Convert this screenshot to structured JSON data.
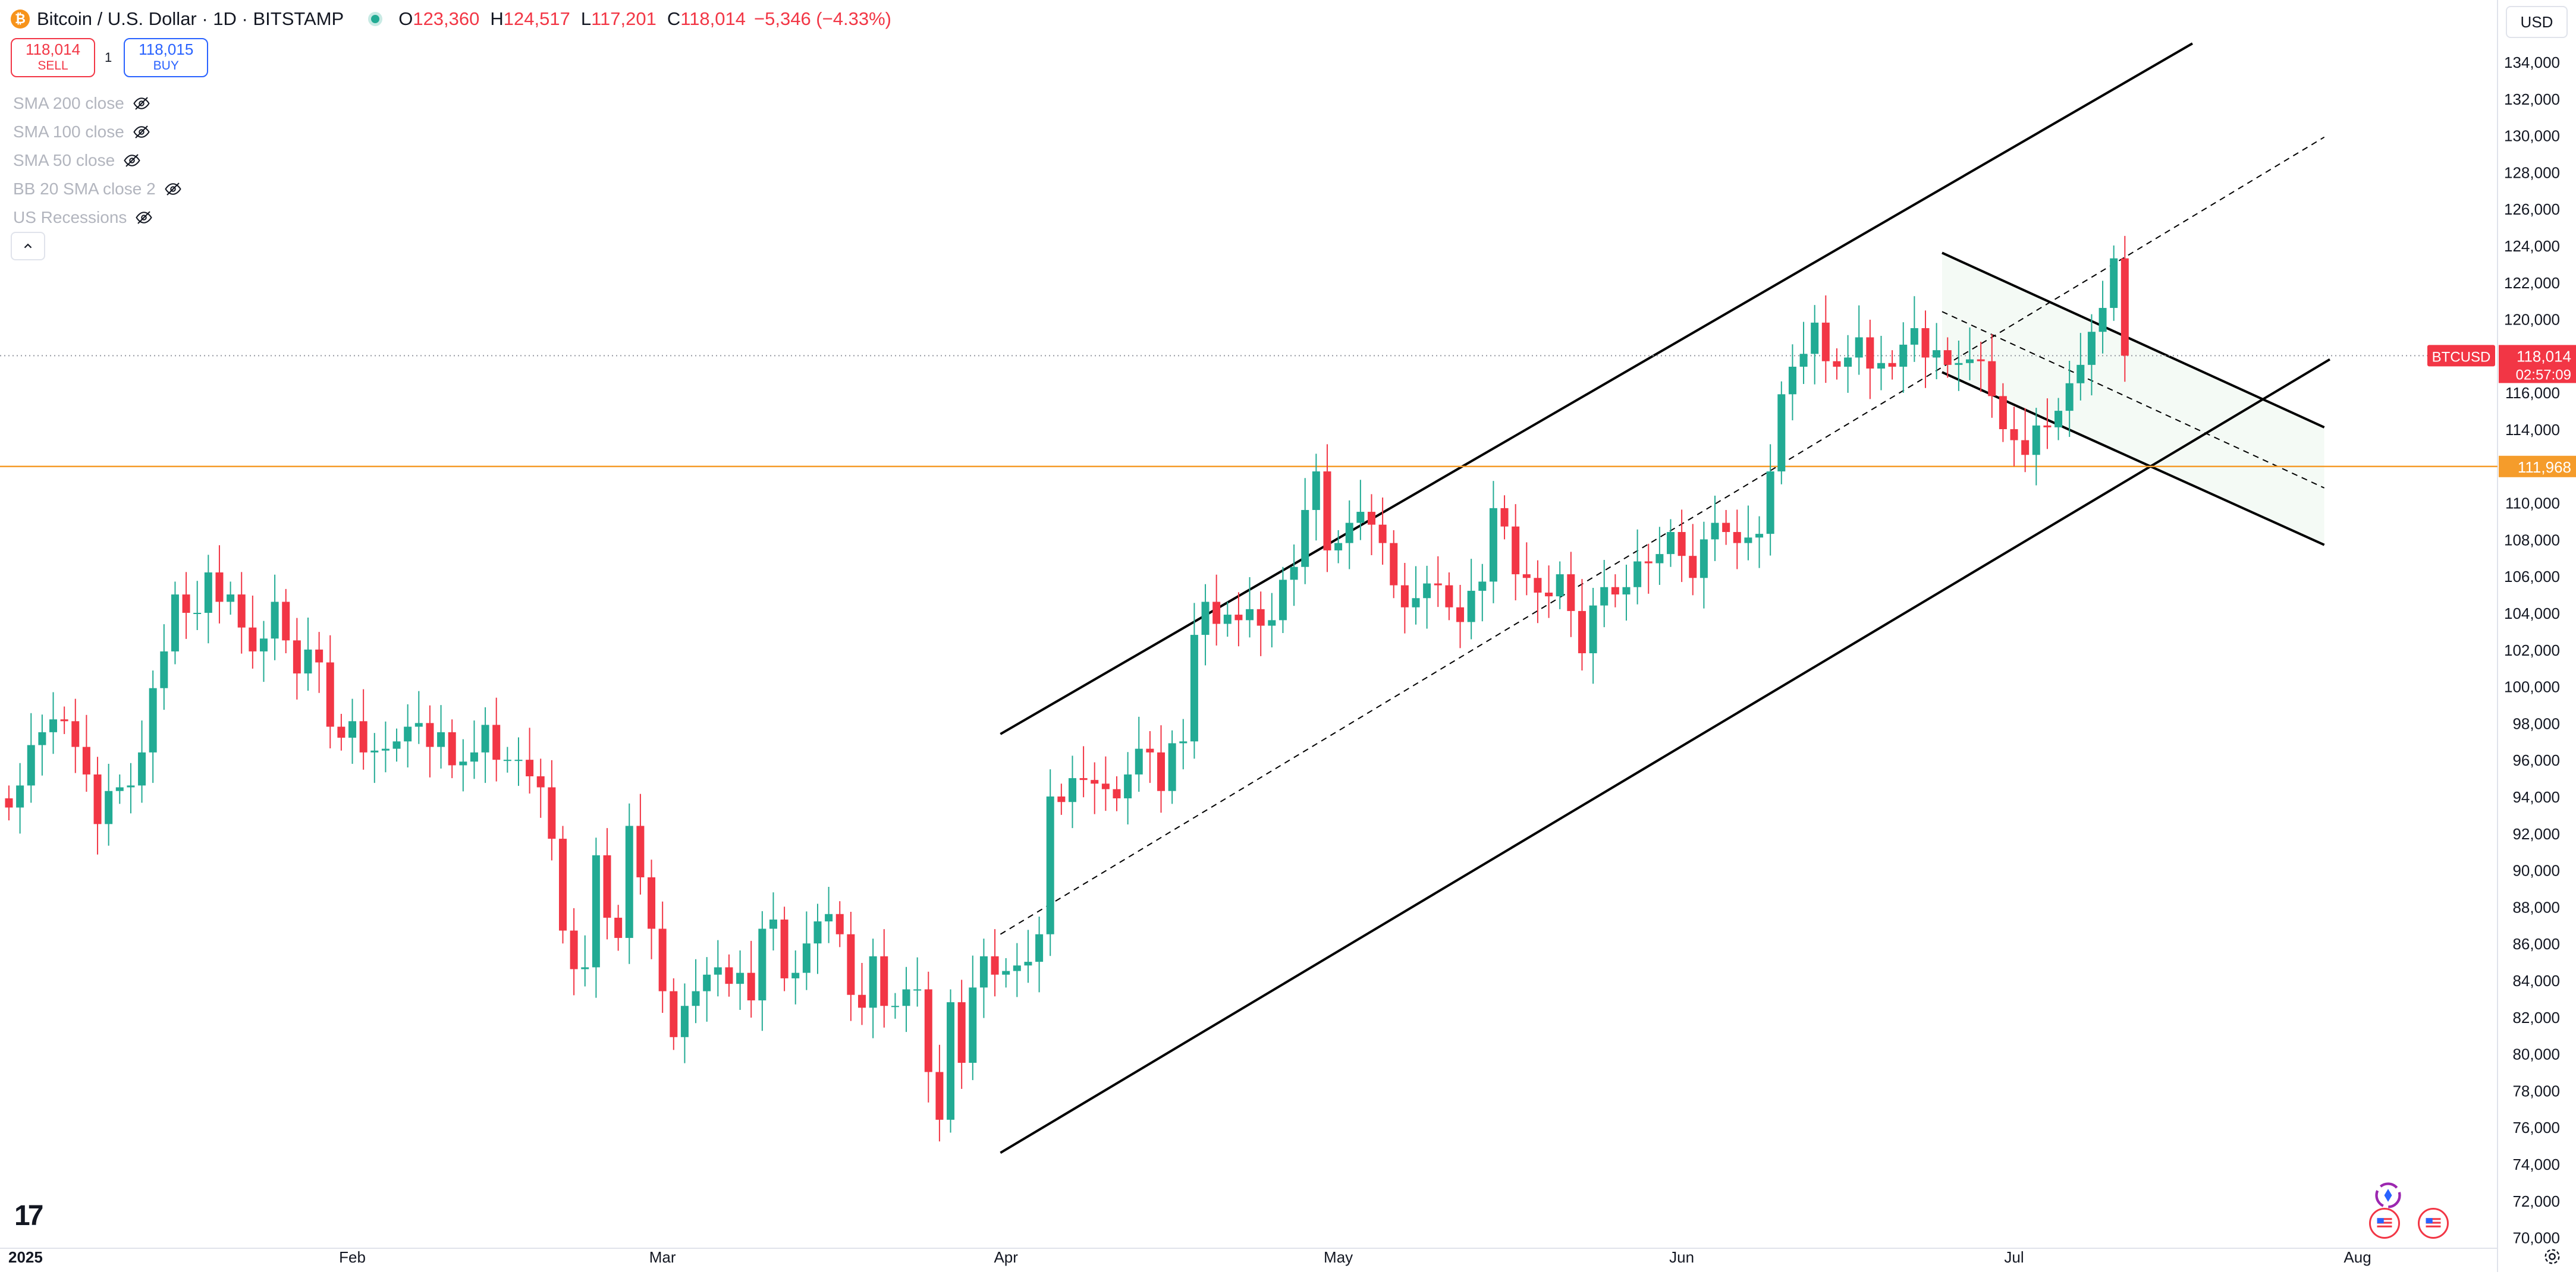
{
  "header": {
    "coin_glyph": "₿",
    "symbol_title": "Bitcoin / U.S. Dollar · 1D · BITSTAMP",
    "ohlc": [
      {
        "label": "O",
        "value": "123,360"
      },
      {
        "label": "H",
        "value": "124,517"
      },
      {
        "label": "L",
        "value": "117,201"
      },
      {
        "label": "C",
        "value": "118,014"
      }
    ],
    "change": "−5,346 (−4.33%)"
  },
  "trade": {
    "sell_price": "118,014",
    "sell_label": "SELL",
    "spread": "1",
    "buy_price": "118,015",
    "buy_label": "BUY"
  },
  "indicators": [
    {
      "label": "SMA 200 close"
    },
    {
      "label": "SMA 100 close"
    },
    {
      "label": "SMA 50 close"
    },
    {
      "label": "BB 20 SMA close 2"
    },
    {
      "label": "US Recessions"
    }
  ],
  "currency_selector": "USD",
  "logo": "17",
  "colors": {
    "up": "#22ab94",
    "down": "#f23645",
    "orange": "#f59c2b",
    "blue": "#2962ff"
  },
  "chart_data": {
    "type": "candlestick",
    "title": "Bitcoin / U.S. Dollar · 1D · BITSTAMP",
    "ylim": [
      70000,
      135000
    ],
    "y_ticks": [
      70000,
      72000,
      74000,
      76000,
      78000,
      80000,
      82000,
      84000,
      86000,
      88000,
      90000,
      92000,
      94000,
      96000,
      98000,
      100000,
      102000,
      104000,
      106000,
      108000,
      110000,
      112000,
      114000,
      116000,
      118000,
      120000,
      122000,
      124000,
      126000,
      128000,
      130000,
      132000,
      134000
    ],
    "x_ticks": [
      {
        "label": "2025",
        "day": 0
      },
      {
        "label": "Feb",
        "day": 31
      },
      {
        "label": "Mar",
        "day": 59
      },
      {
        "label": "Apr",
        "day": 90
      },
      {
        "label": "May",
        "day": 120
      },
      {
        "label": "Jun",
        "day": 151
      },
      {
        "label": "Jul",
        "day": 181
      },
      {
        "label": "Aug",
        "day": 212
      }
    ],
    "closes": [
      93400,
      94600,
      96800,
      97500,
      98200,
      98100,
      96700,
      95200,
      92500,
      94300,
      94500,
      94600,
      96400,
      99900,
      101900,
      105000,
      104000,
      104000,
      106200,
      104600,
      105000,
      103200,
      101900,
      102600,
      104600,
      102500,
      100700,
      102000,
      101300,
      97800,
      97200,
      98100,
      96400,
      96500,
      96600,
      97000,
      97800,
      98000,
      96700,
      97500,
      95700,
      95900,
      96400,
      97900,
      96000,
      96000,
      96000,
      95100,
      94500,
      91700,
      86700,
      84600,
      84700,
      90800,
      87400,
      86300,
      92400,
      89600,
      86800,
      83400,
      80900,
      82600,
      83400,
      84300,
      84700,
      83800,
      84400,
      82900,
      86800,
      87300,
      84100,
      84400,
      86000,
      87200,
      87600,
      86500,
      83200,
      82500,
      85300,
      82600,
      82600,
      83500,
      83500,
      79000,
      76400,
      82800,
      79500,
      83600,
      85300,
      84300,
      84500,
      84800,
      85000,
      86500,
      94000,
      93700,
      95000,
      94900,
      94700,
      94400,
      93900,
      95200,
      96600,
      96400,
      94300,
      96900,
      97000,
      102800,
      104600,
      103400,
      103900,
      103600,
      104200,
      103300,
      103600,
      105800,
      106500,
      109600,
      111700,
      107400,
      107800,
      108900,
      109500,
      108800,
      107800,
      105500,
      104300,
      104800,
      105600,
      105500,
      104300,
      103500,
      105200,
      105700,
      109700,
      108700,
      106100,
      105900,
      105100,
      104900,
      106100,
      104100,
      101800,
      104400,
      105400,
      105000,
      105400,
      106800,
      106700,
      107200,
      108400,
      107100,
      105900,
      108000,
      108900,
      108400,
      107800,
      108100,
      108300,
      111700,
      115900,
      117400,
      118100,
      119800,
      117700,
      117400,
      117900,
      119000,
      117300,
      117600,
      117400,
      118600,
      119500,
      117900,
      118300,
      117500,
      117600,
      117800,
      117700,
      115800,
      114000,
      113400,
      112600,
      114200,
      114100,
      115000,
      116500,
      117500,
      119300,
      120600,
      123300,
      118000
    ],
    "current_price": {
      "symbol": "BTCUSD",
      "value": "118,014",
      "countdown": "02:57:09"
    },
    "horizontal_level": {
      "value": 111968,
      "label": "111,968"
    },
    "drawings": [
      {
        "type": "channel",
        "name": "ascending channel upper line",
        "points": [
          [
            89.5,
            97400
          ],
          [
            197.1,
            135000
          ]
        ]
      },
      {
        "type": "channel",
        "name": "ascending channel median",
        "points": [
          [
            89.5,
            86500
          ],
          [
            209.0,
            129900
          ]
        ]
      },
      {
        "type": "channel",
        "name": "ascending channel lower line",
        "points": [
          [
            89.5,
            74600
          ],
          [
            209.5,
            117800
          ]
        ]
      },
      {
        "type": "channel",
        "name": "descending flag upper line",
        "points": [
          [
            174.5,
            123600
          ],
          [
            209.0,
            114100
          ]
        ]
      },
      {
        "type": "channel",
        "name": "descending flag median",
        "points": [
          [
            174.5,
            120400
          ],
          [
            209.0,
            110800
          ]
        ]
      },
      {
        "type": "channel",
        "name": "descending flag lower line",
        "points": [
          [
            174.5,
            117100
          ],
          [
            209.0,
            107700
          ]
        ]
      }
    ]
  }
}
